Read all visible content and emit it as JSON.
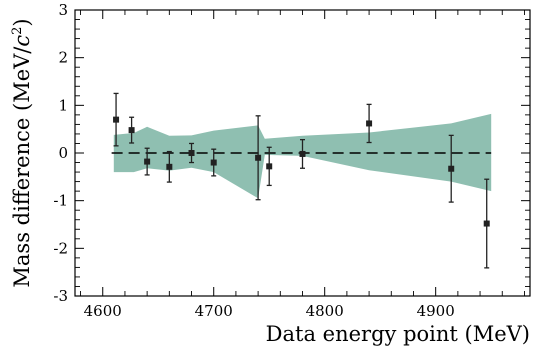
{
  "chart_data": {
    "type": "scatter",
    "title": "",
    "xlabel": "Data energy point (MeV)",
    "ylabel": "Mass difference (MeV/c²)",
    "ylabel_parts": {
      "main": "Mass difference (MeV/",
      "italic": "c",
      "sup": "2",
      "end": ")"
    },
    "xlim": [
      4575,
      4985
    ],
    "ylim": [
      -3,
      3
    ],
    "x_ticks": [
      4600,
      4700,
      4800,
      4900
    ],
    "x_tick_labels": [
      "4600",
      "4700",
      "4800",
      "4900"
    ],
    "y_ticks": [
      -3,
      -2,
      -1,
      0,
      1,
      2,
      3
    ],
    "y_tick_labels": [
      "-3",
      "-2",
      "-1",
      "0",
      "1",
      "2",
      "3"
    ],
    "grid": false,
    "reference_line": {
      "y": 0,
      "style": "dashed"
    },
    "band": {
      "color": "#8fbfb1",
      "x": [
        4610,
        4628,
        4640,
        4660,
        4680,
        4700,
        4740,
        4746,
        4780,
        4840,
        4914,
        4950
      ],
      "upper": [
        0.38,
        0.42,
        0.55,
        0.36,
        0.37,
        0.47,
        0.58,
        0.3,
        0.36,
        0.43,
        0.62,
        0.82
      ],
      "lower": [
        -0.4,
        -0.4,
        -0.32,
        -0.37,
        -0.31,
        -0.4,
        -0.95,
        -0.04,
        -0.06,
        -0.36,
        -0.6,
        -0.8
      ]
    },
    "series": [
      {
        "marker": "square",
        "color": "#222222",
        "points": [
          {
            "x": 4612,
            "y": 0.7,
            "err": 0.55
          },
          {
            "x": 4626,
            "y": 0.48,
            "err": 0.27
          },
          {
            "x": 4640,
            "y": -0.18,
            "err": 0.28
          },
          {
            "x": 4660,
            "y": -0.29,
            "err": 0.32
          },
          {
            "x": 4680,
            "y": 0.0,
            "err": 0.2
          },
          {
            "x": 4700,
            "y": -0.2,
            "err": 0.28
          },
          {
            "x": 4740,
            "y": -0.1,
            "err": 0.88
          },
          {
            "x": 4750,
            "y": -0.28,
            "err": 0.4
          },
          {
            "x": 4780,
            "y": -0.02,
            "err": 0.3
          },
          {
            "x": 4840,
            "y": 0.62,
            "err": 0.4
          },
          {
            "x": 4914,
            "y": -0.33,
            "err": 0.7
          },
          {
            "x": 4946,
            "y": -1.48,
            "err": 0.93
          }
        ]
      }
    ]
  }
}
